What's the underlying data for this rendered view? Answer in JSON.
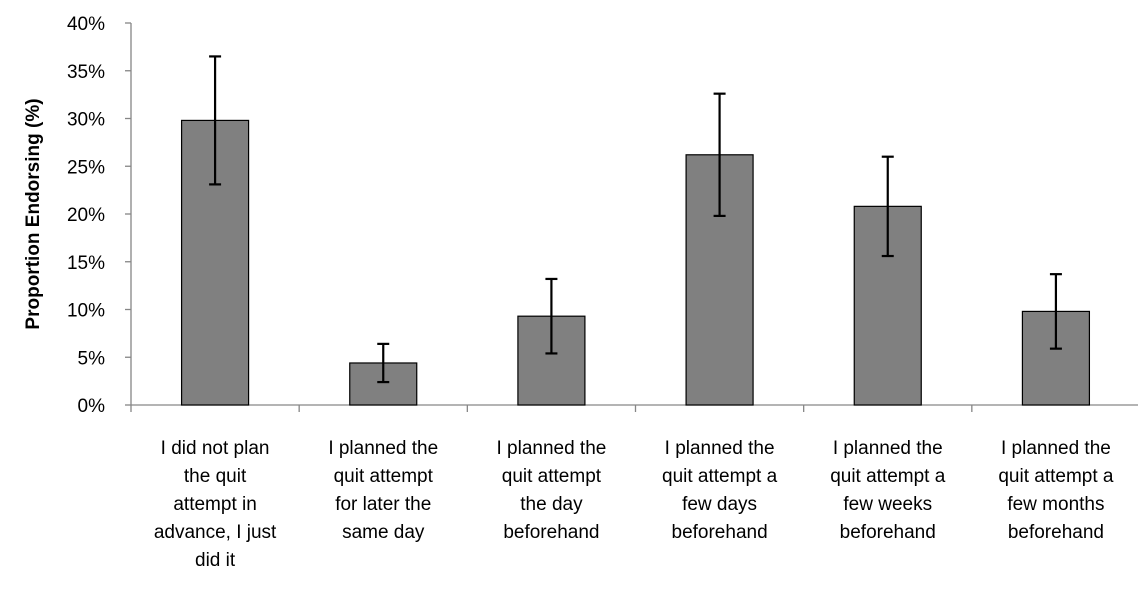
{
  "chart_data": {
    "type": "bar",
    "title": "",
    "xlabel": "",
    "ylabel": "Proportion Endorsing (%)",
    "ylim": [
      0,
      40
    ],
    "y_ticks": [
      "0%",
      "5%",
      "10%",
      "15%",
      "20%",
      "25%",
      "30%",
      "35%",
      "40%"
    ],
    "y_tick_values": [
      0,
      5,
      10,
      15,
      20,
      25,
      30,
      35,
      40
    ],
    "grid": false,
    "legend": "none",
    "bar_color": "#808080",
    "bar_edge_color": "#000000",
    "categories": [
      [
        "I did not plan",
        "the quit",
        "attempt in",
        "advance, I just",
        "did it"
      ],
      [
        "I planned the",
        "quit attempt",
        "for later the",
        "same day"
      ],
      [
        "I planned the",
        "quit attempt",
        "the day",
        "beforehand"
      ],
      [
        "I planned the",
        "quit attempt a",
        "few days",
        "beforehand"
      ],
      [
        "I planned the",
        "quit attempt a",
        "few weeks",
        "beforehand"
      ],
      [
        "I planned the",
        "quit attempt a",
        "few months",
        "beforehand"
      ]
    ],
    "values": [
      29.8,
      4.4,
      9.3,
      26.2,
      20.8,
      9.8
    ],
    "error_low": [
      23.1,
      2.4,
      5.4,
      19.8,
      15.6,
      5.9
    ],
    "error_high": [
      36.5,
      6.4,
      13.2,
      32.6,
      26.0,
      13.7
    ]
  }
}
